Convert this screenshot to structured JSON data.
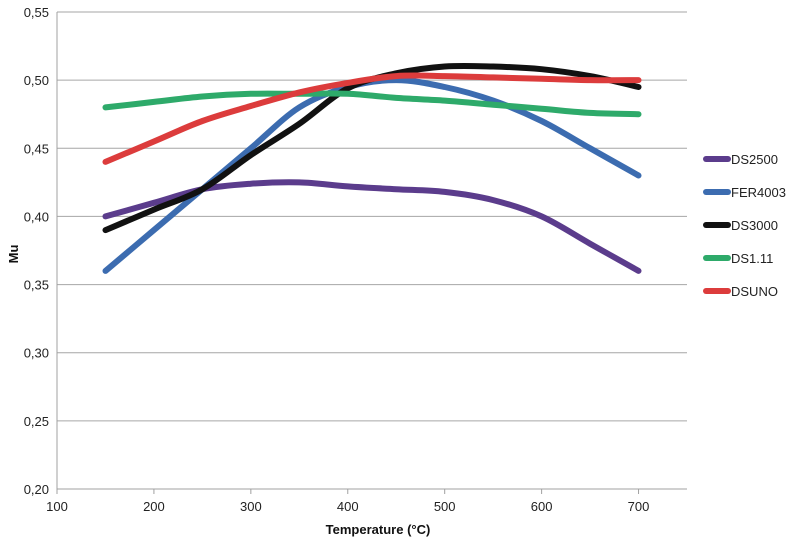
{
  "chart_data": {
    "type": "line",
    "title": "",
    "xlabel": "Temperature (°C)",
    "ylabel": "Mu",
    "xlim": [
      100,
      750
    ],
    "ylim": [
      0.2,
      0.55
    ],
    "x_ticks": [
      "100",
      "200",
      "300",
      "400",
      "500",
      "600",
      "700"
    ],
    "y_ticks": [
      "0,20",
      "0,25",
      "0,30",
      "0,35",
      "0,40",
      "0,45",
      "0,50",
      "0,55"
    ],
    "grid": "horizontal",
    "legend_position": "right",
    "series": [
      {
        "name": "DS2500",
        "color": "#5b3c8c",
        "points": [
          [
            150,
            0.4
          ],
          [
            200,
            0.41
          ],
          [
            250,
            0.42
          ],
          [
            300,
            0.424
          ],
          [
            350,
            0.425
          ],
          [
            400,
            0.422
          ],
          [
            450,
            0.42
          ],
          [
            500,
            0.418
          ],
          [
            550,
            0.412
          ],
          [
            600,
            0.4
          ],
          [
            650,
            0.38
          ],
          [
            700,
            0.36
          ]
        ]
      },
      {
        "name": "FER4003",
        "color": "#3c6cb0",
        "points": [
          [
            150,
            0.36
          ],
          [
            200,
            0.39
          ],
          [
            250,
            0.42
          ],
          [
            300,
            0.45
          ],
          [
            350,
            0.48
          ],
          [
            400,
            0.495
          ],
          [
            450,
            0.5
          ],
          [
            500,
            0.495
          ],
          [
            550,
            0.485
          ],
          [
            600,
            0.47
          ],
          [
            650,
            0.45
          ],
          [
            700,
            0.43
          ]
        ]
      },
      {
        "name": "DS3000",
        "color": "#111111",
        "points": [
          [
            150,
            0.39
          ],
          [
            200,
            0.405
          ],
          [
            250,
            0.42
          ],
          [
            300,
            0.445
          ],
          [
            350,
            0.468
          ],
          [
            400,
            0.494
          ],
          [
            450,
            0.505
          ],
          [
            500,
            0.51
          ],
          [
            550,
            0.51
          ],
          [
            600,
            0.508
          ],
          [
            650,
            0.503
          ],
          [
            700,
            0.495
          ]
        ]
      },
      {
        "name": "DS1.11",
        "color": "#2eaa6a",
        "points": [
          [
            150,
            0.48
          ],
          [
            200,
            0.484
          ],
          [
            250,
            0.488
          ],
          [
            300,
            0.49
          ],
          [
            350,
            0.49
          ],
          [
            400,
            0.49
          ],
          [
            450,
            0.487
          ],
          [
            500,
            0.485
          ],
          [
            550,
            0.482
          ],
          [
            600,
            0.479
          ],
          [
            650,
            0.476
          ],
          [
            700,
            0.475
          ]
        ]
      },
      {
        "name": "DSUNO",
        "color": "#dc3c3c",
        "points": [
          [
            150,
            0.44
          ],
          [
            200,
            0.455
          ],
          [
            250,
            0.47
          ],
          [
            300,
            0.481
          ],
          [
            350,
            0.491
          ],
          [
            400,
            0.498
          ],
          [
            450,
            0.503
          ],
          [
            500,
            0.503
          ],
          [
            550,
            0.502
          ],
          [
            600,
            0.501
          ],
          [
            650,
            0.5
          ],
          [
            700,
            0.5
          ]
        ]
      }
    ]
  }
}
